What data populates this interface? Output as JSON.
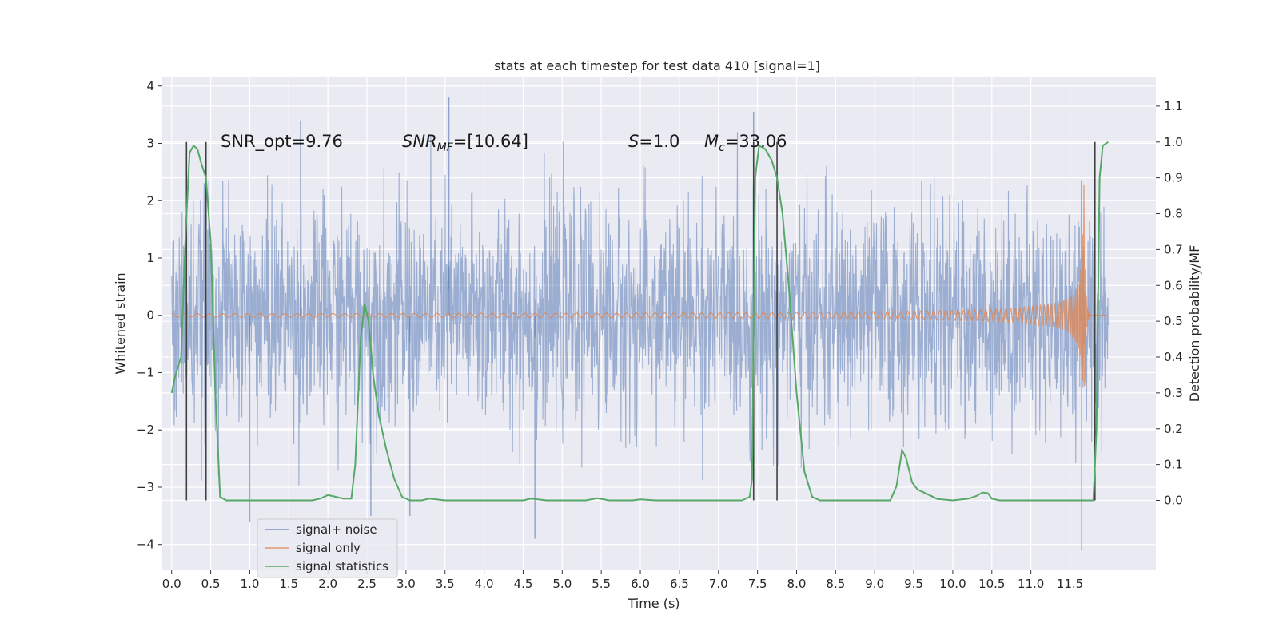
{
  "chart_data": {
    "type": "line",
    "title": "stats at each timestep for test data 410 [signal=1]",
    "xlabel": "Time (s)",
    "ylabel": "Whitened strain",
    "y2label": "Detection probability/MF",
    "xlim": [
      -0.12,
      12.6
    ],
    "ylim": [
      -4.45,
      4.15
    ],
    "y2lim": [
      -0.195,
      1.18
    ],
    "grid": true,
    "legend_position": "lower-left",
    "x_ticks": [
      "0.0",
      "0.5",
      "1.0",
      "1.5",
      "2.0",
      "2.5",
      "3.0",
      "3.5",
      "4.0",
      "4.5",
      "5.0",
      "5.5",
      "6.0",
      "6.5",
      "7.0",
      "7.5",
      "8.0",
      "8.5",
      "9.0",
      "9.5",
      "10.0",
      "10.5",
      "11.0",
      "11.5"
    ],
    "y_ticks": [
      "−4",
      "−3",
      "−2",
      "−1",
      "0",
      "1",
      "2",
      "3",
      "4"
    ],
    "y2_ticks": [
      "0.0",
      "0.1",
      "0.2",
      "0.3",
      "0.4",
      "0.5",
      "0.6",
      "0.7",
      "0.8",
      "0.9",
      "1.0",
      "1.1"
    ],
    "annotations": {
      "snr_opt": "SNR_opt=9.76",
      "snr_mf_main": "SNR",
      "snr_mf_sub": "MF",
      "snr_mf_value": "=[10.64]",
      "s_main": "S",
      "s_value": "=1.0",
      "mc_main": "M",
      "mc_sub": "c",
      "mc_value": "=33.06"
    },
    "vertical_lines_x": [
      0.19,
      0.44,
      7.45,
      7.75,
      11.82
    ],
    "colors": {
      "noise": "#4c72b0",
      "signal": "#dd8452",
      "stats": "#55a868",
      "vline": "#404040",
      "plot_bg": "#eaeaf2"
    },
    "series": [
      {
        "name": "signal+ noise",
        "kind": "noise",
        "x_range": [
          0.0,
          11.99
        ],
        "envelope_typical": [
          -2.3,
          2.4
        ],
        "peaks": [
          [
            3.55,
            3.8
          ],
          [
            7.45,
            3.55
          ],
          [
            1.65,
            3.4
          ],
          [
            2.55,
            -3.5
          ],
          [
            3.05,
            -3.5
          ],
          [
            4.65,
            -3.9
          ],
          [
            11.65,
            -4.1
          ],
          [
            1.0,
            -3.6
          ]
        ]
      },
      {
        "name": "signal only",
        "kind": "chirp",
        "x_range": [
          0.0,
          11.99
        ],
        "merger_time": 11.68,
        "peak_amplitude": 2.3
      },
      {
        "name": "signal statistics",
        "axis": "right",
        "x": [
          0.0,
          0.05,
          0.12,
          0.18,
          0.23,
          0.28,
          0.33,
          0.38,
          0.44,
          0.5,
          0.56,
          0.62,
          0.7,
          0.8,
          1.0,
          1.5,
          1.8,
          1.9,
          2.0,
          2.1,
          2.2,
          2.3,
          2.35,
          2.42,
          2.47,
          2.52,
          2.58,
          2.65,
          2.75,
          2.85,
          2.95,
          3.05,
          3.2,
          3.3,
          3.5,
          4.0,
          4.5,
          4.6,
          4.8,
          5.0,
          5.3,
          5.45,
          5.6,
          5.9,
          6.0,
          6.2,
          6.5,
          7.0,
          7.3,
          7.4,
          7.43,
          7.47,
          7.52,
          7.6,
          7.68,
          7.75,
          7.82,
          7.9,
          8.0,
          8.1,
          8.2,
          8.3,
          8.5,
          9.0,
          9.2,
          9.28,
          9.35,
          9.4,
          9.48,
          9.55,
          9.7,
          9.8,
          10.0,
          10.2,
          10.3,
          10.38,
          10.45,
          10.5,
          10.6,
          10.8,
          11.0,
          11.5,
          11.8,
          11.84,
          11.88,
          11.92,
          11.99
        ],
        "values": [
          0.3,
          0.35,
          0.4,
          0.75,
          0.97,
          0.99,
          0.98,
          0.94,
          0.9,
          0.72,
          0.3,
          0.01,
          0.0,
          0.0,
          0.0,
          0.0,
          0.0,
          0.005,
          0.015,
          0.01,
          0.005,
          0.005,
          0.1,
          0.45,
          0.55,
          0.5,
          0.35,
          0.24,
          0.14,
          0.06,
          0.01,
          0.0,
          0.0,
          0.005,
          0.0,
          0.0,
          0.0,
          0.005,
          0.0,
          0.0,
          0.0,
          0.006,
          0.0,
          0.0,
          0.003,
          0.0,
          0.0,
          0.0,
          0.0,
          0.01,
          0.06,
          0.9,
          0.99,
          0.98,
          0.95,
          0.9,
          0.8,
          0.6,
          0.3,
          0.08,
          0.01,
          0.0,
          0.0,
          0.0,
          0.0,
          0.04,
          0.14,
          0.12,
          0.05,
          0.03,
          0.015,
          0.004,
          0.0,
          0.005,
          0.012,
          0.022,
          0.02,
          0.005,
          0.0,
          0.0,
          0.0,
          0.0,
          0.0,
          0.2,
          0.9,
          0.99,
          1.0
        ]
      }
    ]
  }
}
